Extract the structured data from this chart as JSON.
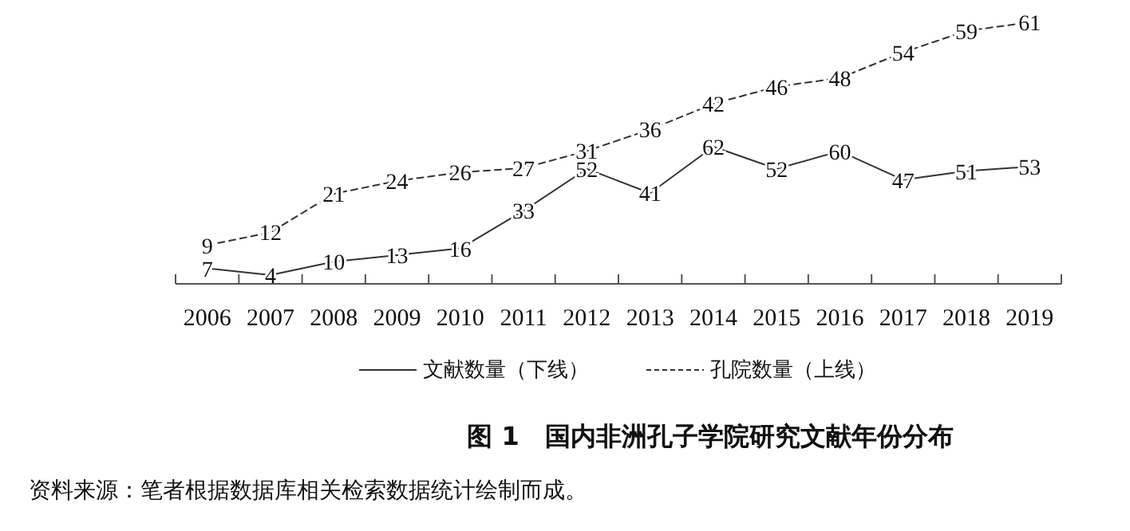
{
  "chart_data": {
    "type": "line",
    "title": "图 1　国内非洲孔子学院研究文献年份分布",
    "annotations": [
      "资料来源：笔者根据数据库相关检索数据统计绘制而成。"
    ],
    "categories": [
      "2006",
      "2007",
      "2008",
      "2009",
      "2010",
      "2011",
      "2012",
      "2013",
      "2014",
      "2015",
      "2016",
      "2017",
      "2018",
      "2019"
    ],
    "series": [
      {
        "name": "文献数量（下线）",
        "color": "#333333",
        "line_style": "solid",
        "values": [
          7,
          4,
          10,
          13,
          16,
          33,
          52,
          41,
          62,
          52,
          60,
          47,
          51,
          53
        ]
      },
      {
        "name": "孔院数量（上线）",
        "color": "#333333",
        "line_style": "dashed",
        "axis": "y2",
        "values": [
          9,
          12,
          21,
          24,
          26,
          27,
          31,
          36,
          42,
          46,
          48,
          54,
          59,
          61
        ]
      }
    ],
    "data_labels": true,
    "legend": "bottom",
    "grid": false,
    "marker": "none"
  }
}
